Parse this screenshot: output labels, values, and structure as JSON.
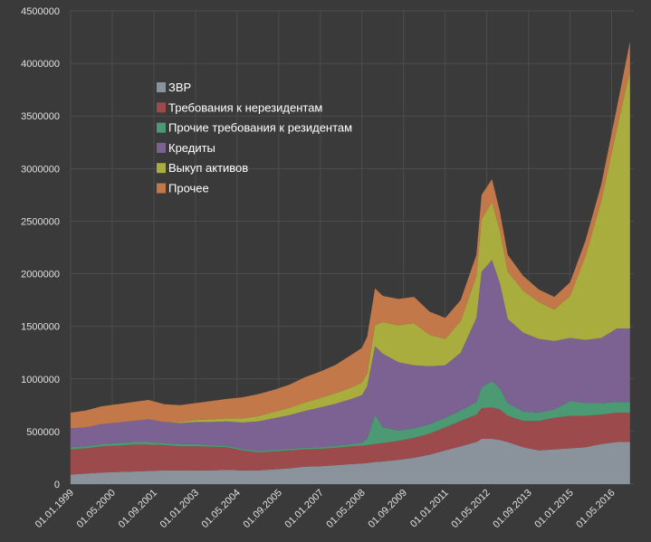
{
  "chart_data": {
    "type": "area",
    "stacked": true,
    "title": "",
    "xlabel": "",
    "ylabel": "",
    "ylim": [
      0,
      4500000
    ],
    "yticks": [
      0,
      500000,
      1000000,
      1500000,
      2000000,
      2500000,
      3000000,
      3500000,
      4000000,
      4500000
    ],
    "xticks": [
      "01.01.1999",
      "01.05.2000",
      "01.09.2001",
      "01.01.2003",
      "01.05.2004",
      "01.09.2005",
      "01.01.2007",
      "01.05.2008",
      "01.09.2009",
      "01.01.2011",
      "01.05.2012",
      "01.09.2013",
      "01.01.2015",
      "01.05.2016"
    ],
    "grid": true,
    "legend_position": "upper-left",
    "x": [
      "1999-01",
      "1999-07",
      "2000-01",
      "2000-07",
      "2001-01",
      "2001-07",
      "2002-01",
      "2002-07",
      "2003-01",
      "2003-07",
      "2004-01",
      "2004-07",
      "2005-01",
      "2005-07",
      "2006-01",
      "2006-07",
      "2007-01",
      "2007-07",
      "2008-01",
      "2008-05",
      "2008-07",
      "2008-10",
      "2009-01",
      "2009-07",
      "2010-01",
      "2010-07",
      "2011-01",
      "2011-07",
      "2012-01",
      "2012-03",
      "2012-07",
      "2012-10",
      "2013-01",
      "2013-07",
      "2014-01",
      "2014-07",
      "2015-01",
      "2015-07",
      "2016-01",
      "2016-07",
      "2016-12"
    ],
    "series": [
      {
        "name": "ЗВР",
        "color": "#8a939b",
        "values": [
          90000,
          100000,
          110000,
          115000,
          120000,
          125000,
          130000,
          130000,
          130000,
          130000,
          135000,
          130000,
          130000,
          140000,
          150000,
          165000,
          170000,
          180000,
          190000,
          195000,
          200000,
          210000,
          215000,
          230000,
          250000,
          280000,
          320000,
          360000,
          400000,
          430000,
          430000,
          420000,
          400000,
          350000,
          320000,
          330000,
          340000,
          350000,
          380000,
          400000,
          400000
        ]
      },
      {
        "name": "Требования к нерезидентам",
        "color": "#9c4a4c",
        "values": [
          240000,
          240000,
          250000,
          250000,
          255000,
          250000,
          240000,
          230000,
          230000,
          225000,
          215000,
          190000,
          170000,
          170000,
          170000,
          165000,
          165000,
          165000,
          170000,
          170000,
          170000,
          170000,
          175000,
          180000,
          190000,
          200000,
          220000,
          240000,
          260000,
          290000,
          300000,
          290000,
          250000,
          250000,
          280000,
          300000,
          310000,
          300000,
          280000,
          280000,
          280000
        ]
      },
      {
        "name": "Прочие требования к резидентам",
        "color": "#4b9a73",
        "values": [
          20000,
          20000,
          20000,
          25000,
          25000,
          25000,
          20000,
          20000,
          20000,
          15000,
          15000,
          15000,
          15000,
          15000,
          15000,
          15000,
          15000,
          20000,
          20000,
          30000,
          60000,
          280000,
          150000,
          100000,
          90000,
          90000,
          90000,
          100000,
          120000,
          200000,
          250000,
          200000,
          120000,
          90000,
          80000,
          80000,
          140000,
          120000,
          110000,
          100000,
          100000
        ]
      },
      {
        "name": "Кредиты",
        "color": "#7b6293",
        "values": [
          180000,
          180000,
          190000,
          195000,
          200000,
          215000,
          200000,
          200000,
          210000,
          220000,
          230000,
          250000,
          280000,
          300000,
          320000,
          350000,
          380000,
          400000,
          430000,
          450000,
          500000,
          650000,
          700000,
          650000,
          600000,
          550000,
          500000,
          550000,
          800000,
          1100000,
          1150000,
          1000000,
          800000,
          750000,
          700000,
          650000,
          600000,
          600000,
          620000,
          700000,
          700000
        ]
      },
      {
        "name": "Выкуп активов",
        "color": "#a9ad3e",
        "values": [
          0,
          0,
          0,
          0,
          0,
          0,
          0,
          10000,
          20000,
          25000,
          30000,
          40000,
          50000,
          60000,
          70000,
          80000,
          90000,
          100000,
          110000,
          120000,
          120000,
          200000,
          300000,
          350000,
          400000,
          300000,
          250000,
          300000,
          400000,
          500000,
          550000,
          500000,
          450000,
          400000,
          350000,
          300000,
          400000,
          800000,
          1300000,
          1900000,
          2450000
        ]
      },
      {
        "name": "Прочее",
        "color": "#c3784a",
        "values": [
          150000,
          160000,
          170000,
          175000,
          180000,
          185000,
          170000,
          160000,
          160000,
          175000,
          185000,
          200000,
          210000,
          210000,
          220000,
          240000,
          250000,
          270000,
          310000,
          330000,
          350000,
          350000,
          250000,
          250000,
          250000,
          220000,
          200000,
          200000,
          200000,
          230000,
          220000,
          180000,
          160000,
          140000,
          120000,
          120000,
          130000,
          150000,
          160000,
          200000,
          280000
        ]
      }
    ]
  }
}
